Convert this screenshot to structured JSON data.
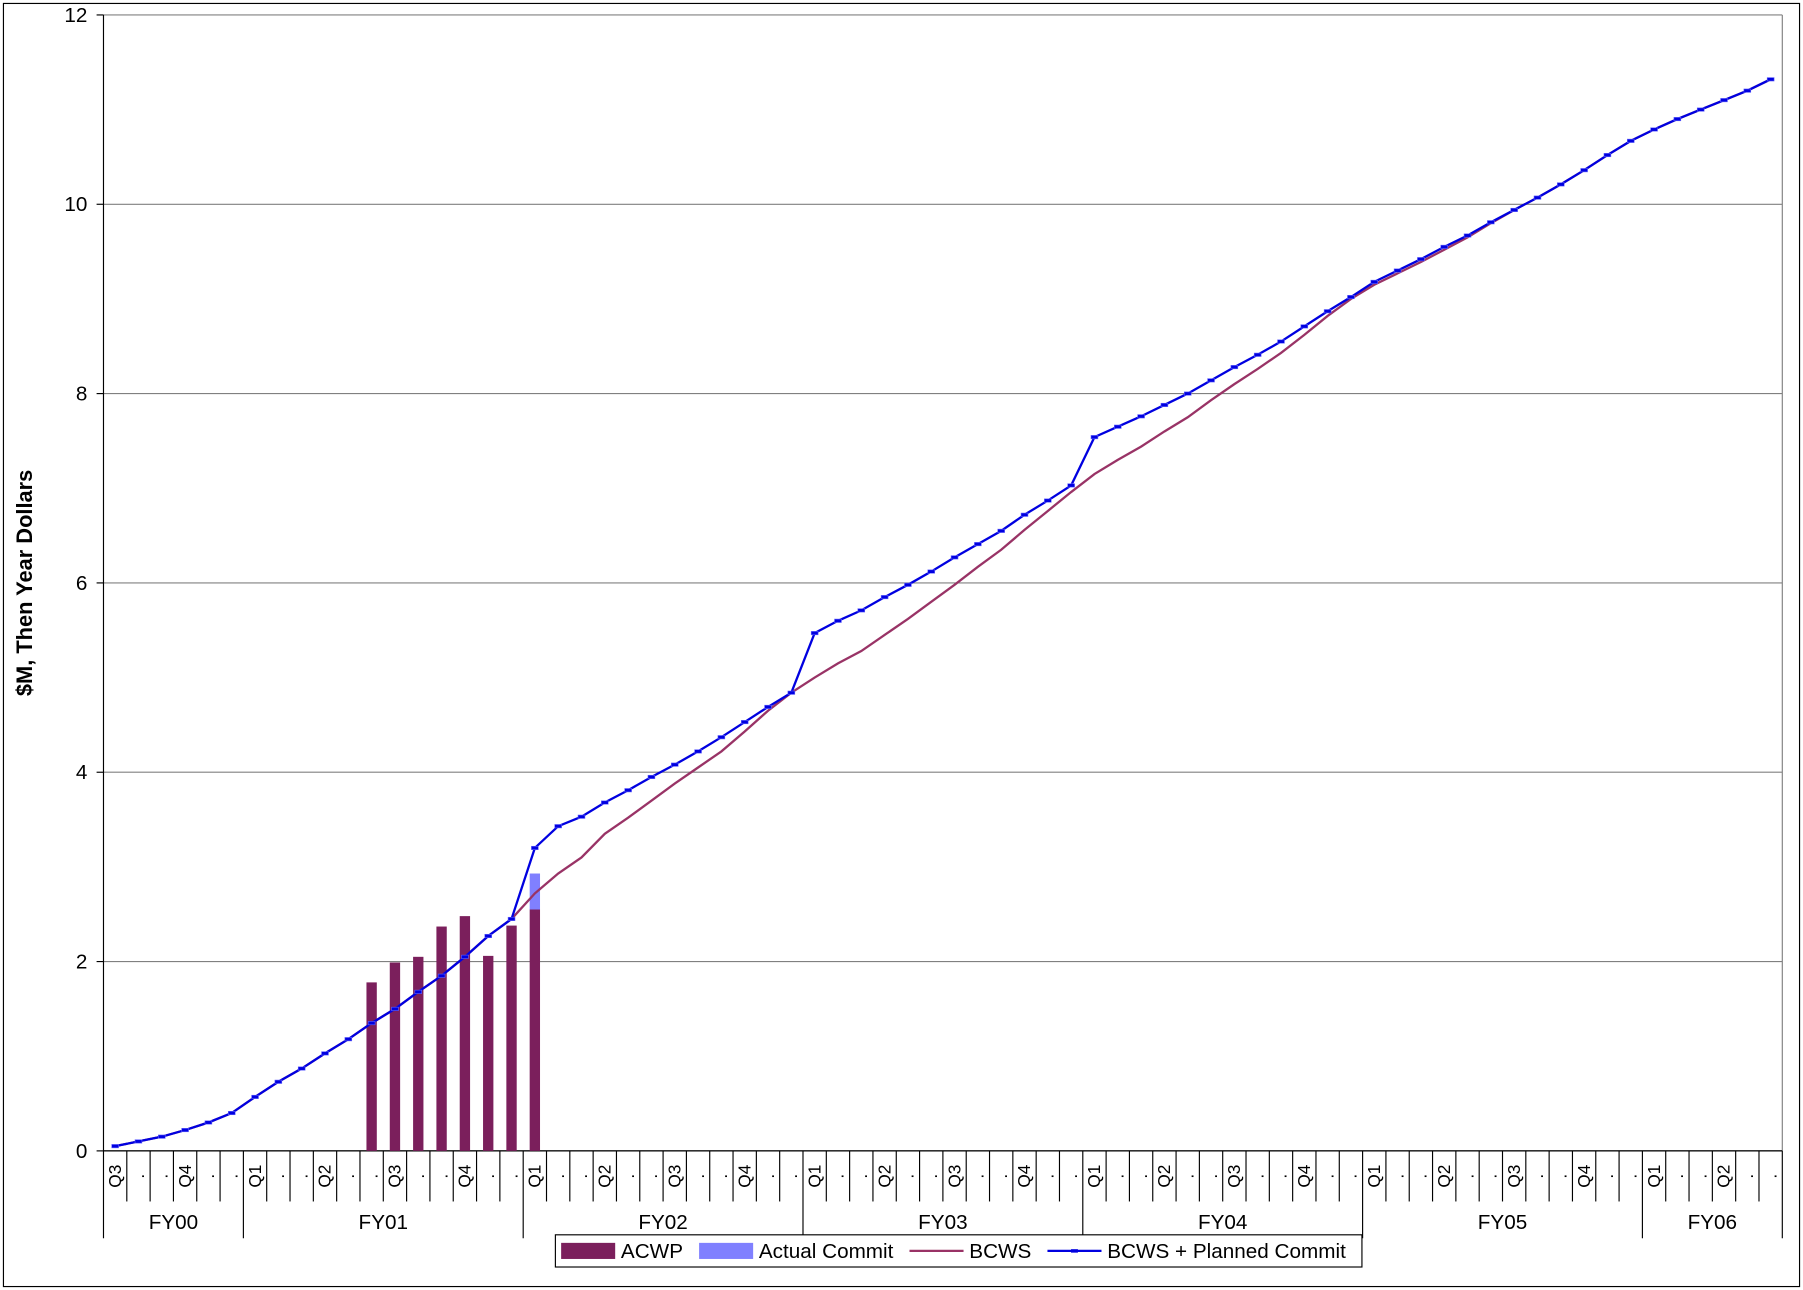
{
  "chart_data": {
    "type": "combo",
    "y_label": "$M, Then Year Dollars",
    "categories": [
      "Q3",
      ".",
      ".",
      "Q4",
      ".",
      ".",
      "Q1",
      ".",
      ".",
      "Q2",
      ".",
      ".",
      "Q3",
      ".",
      ".",
      "Q4",
      ".",
      ".",
      "Q1",
      ".",
      ".",
      "Q2",
      ".",
      ".",
      "Q3",
      ".",
      ".",
      "Q4",
      ".",
      ".",
      "Q1",
      ".",
      ".",
      "Q2",
      ".",
      ".",
      "Q3",
      ".",
      ".",
      "Q4",
      ".",
      ".",
      "Q1",
      ".",
      ".",
      "Q2",
      ".",
      ".",
      "Q3",
      ".",
      ".",
      "Q4",
      ".",
      ".",
      "Q1",
      ".",
      ".",
      "Q2",
      ".",
      ".",
      "Q3",
      ".",
      ".",
      "Q4",
      ".",
      ".",
      "Q1",
      ".",
      ".",
      "Q2",
      ".",
      "."
    ],
    "category_groups": [
      "FY00",
      "FY01",
      "FY02",
      "FY03",
      "FY04",
      "FY05",
      "FY06"
    ],
    "stacked": true,
    "series": [
      {
        "name": "ACWP",
        "kind": "bar",
        "color": "#7b1f5c",
        "values": [
          null,
          null,
          null,
          null,
          null,
          null,
          null,
          null,
          null,
          null,
          null,
          1.78,
          1.99,
          2.05,
          2.37,
          2.48,
          2.06,
          2.38,
          2.55,
          null,
          null,
          null,
          null,
          null,
          null,
          null,
          null,
          null,
          null,
          null,
          null,
          null,
          null,
          null,
          null,
          null,
          null,
          null,
          null,
          null,
          null,
          null,
          null,
          null,
          null,
          null,
          null,
          null,
          null,
          null,
          null,
          null,
          null,
          null,
          null,
          null,
          null,
          null,
          null,
          null,
          null,
          null,
          null,
          null,
          null,
          null,
          null,
          null,
          null,
          null,
          null,
          null
        ]
      },
      {
        "name": "Actual Commit",
        "kind": "bar",
        "color": "#8080ff",
        "values": [
          null,
          null,
          null,
          null,
          null,
          null,
          null,
          null,
          null,
          null,
          null,
          null,
          null,
          null,
          null,
          null,
          null,
          null,
          0.38,
          null,
          null,
          null,
          null,
          null,
          null,
          null,
          null,
          null,
          null,
          null,
          null,
          null,
          null,
          null,
          null,
          null,
          null,
          null,
          null,
          null,
          null,
          null,
          null,
          null,
          null,
          null,
          null,
          null,
          null,
          null,
          null,
          null,
          null,
          null,
          null,
          null,
          null,
          null,
          null,
          null,
          null,
          null,
          null,
          null,
          null,
          null,
          null,
          null,
          null,
          null,
          null,
          null
        ]
      },
      {
        "name": "BCWS",
        "kind": "line",
        "color": "#993366",
        "values": [
          0.05,
          0.1,
          0.15,
          0.22,
          0.3,
          0.4,
          0.57,
          0.73,
          0.87,
          1.03,
          1.18,
          1.35,
          1.5,
          1.68,
          1.85,
          2.05,
          2.27,
          2.45,
          2.72,
          2.93,
          3.1,
          3.35,
          3.52,
          3.7,
          3.88,
          4.05,
          4.22,
          4.43,
          4.65,
          4.84,
          5.0,
          5.15,
          5.28,
          5.45,
          5.62,
          5.8,
          5.98,
          6.17,
          6.35,
          6.56,
          6.76,
          6.96,
          7.15,
          7.3,
          7.44,
          7.6,
          7.75,
          7.93,
          8.1,
          8.26,
          8.43,
          8.62,
          8.82,
          9.0,
          9.15,
          9.27,
          9.39,
          9.52,
          9.65,
          9.8,
          9.94,
          10.07,
          10.21,
          10.36,
          10.52,
          10.67,
          10.79,
          10.9,
          11.0,
          11.1,
          11.2,
          11.32
        ]
      },
      {
        "name": "BCWS + Planned Commit",
        "kind": "line",
        "markers": true,
        "color": "#0000e0",
        "values": [
          0.05,
          0.1,
          0.15,
          0.22,
          0.3,
          0.4,
          0.57,
          0.73,
          0.87,
          1.03,
          1.18,
          1.35,
          1.5,
          1.68,
          1.85,
          2.05,
          2.27,
          2.45,
          3.2,
          3.43,
          3.53,
          3.68,
          3.81,
          3.95,
          4.08,
          4.22,
          4.37,
          4.53,
          4.69,
          4.84,
          5.47,
          5.6,
          5.71,
          5.85,
          5.98,
          6.12,
          6.27,
          6.41,
          6.55,
          6.72,
          6.87,
          7.03,
          7.54,
          7.65,
          7.76,
          7.88,
          8.0,
          8.14,
          8.28,
          8.41,
          8.55,
          8.71,
          8.87,
          9.02,
          9.18,
          9.3,
          9.42,
          9.55,
          9.67,
          9.81,
          9.94,
          10.07,
          10.21,
          10.36,
          10.52,
          10.67,
          10.79,
          10.9,
          11.0,
          11.1,
          11.2,
          11.32
        ]
      }
    ],
    "ylim": [
      0,
      12
    ],
    "yticks": [
      0,
      2,
      4,
      6,
      8,
      10,
      12
    ],
    "grid": true,
    "legend": "bottom"
  }
}
